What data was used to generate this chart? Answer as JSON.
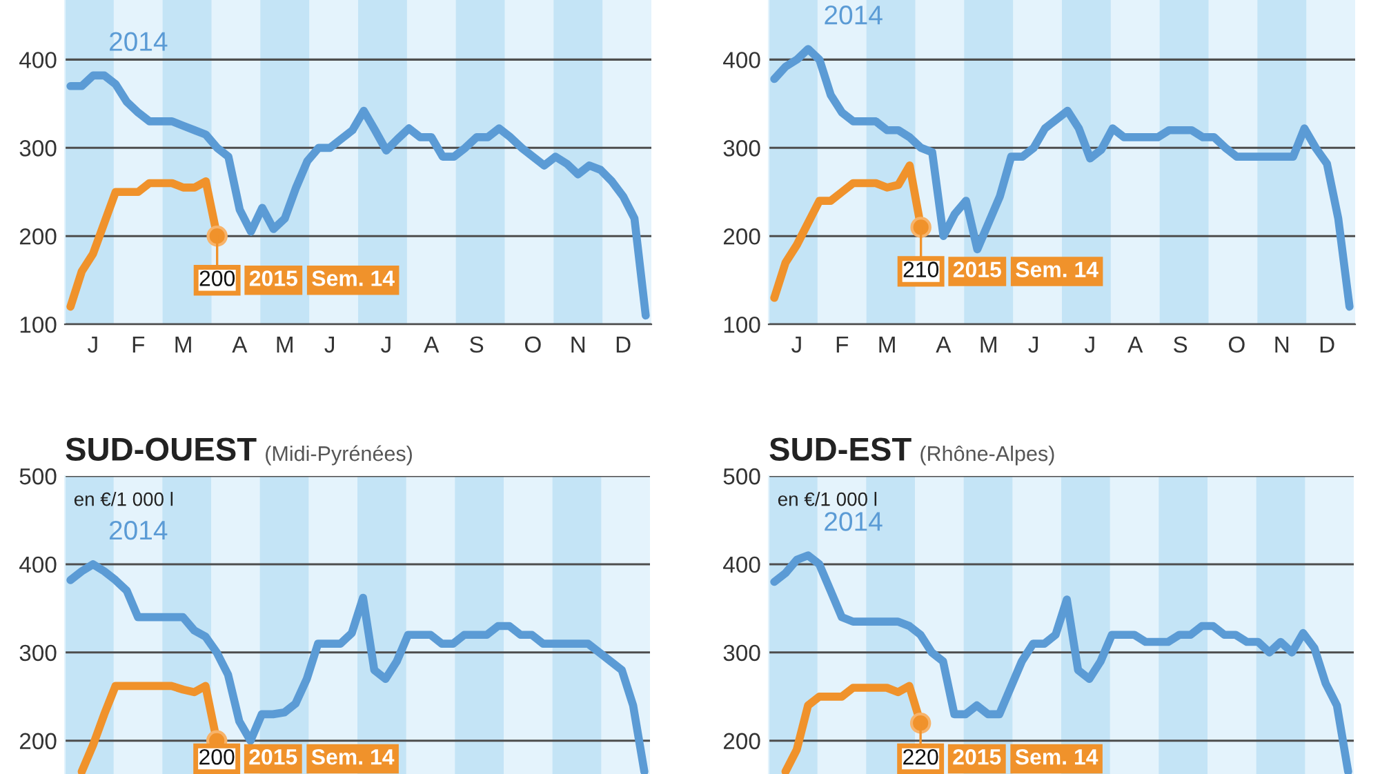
{
  "chart_data": [
    {
      "type": "line",
      "categories": [
        null,
        null,
        "J",
        null,
        null,
        null,
        "F",
        null,
        null,
        null,
        "M",
        null,
        null,
        null,
        null,
        "A",
        null,
        null,
        null,
        "M",
        null,
        null,
        null,
        "J",
        null,
        null,
        null,
        null,
        "J",
        null,
        null,
        null,
        "A",
        null,
        null,
        null,
        "S",
        null,
        null,
        null,
        null,
        "O",
        null,
        null,
        null,
        "N",
        null,
        null,
        null,
        "D",
        null,
        null
      ],
      "ylim": [
        100,
        500
      ],
      "yticks": [
        100,
        200,
        300,
        400
      ],
      "grid": "y",
      "annotations": [
        "Sem. 14"
      ],
      "series": [
        {
          "name": "2014",
          "color": "#5b9bd5",
          "values": [
            370,
            370,
            382,
            382,
            372,
            352,
            340,
            330,
            330,
            330,
            325,
            320,
            315,
            300,
            290,
            230,
            205,
            232,
            208,
            220,
            255,
            285,
            300,
            300,
            310,
            320,
            342,
            320,
            297,
            310,
            322,
            312,
            312,
            290,
            290,
            300,
            312,
            312,
            322,
            312,
            300,
            290,
            280,
            290,
            282,
            270,
            280,
            275,
            262,
            245,
            220,
            110
          ]
        },
        {
          "name": "2015",
          "color": "#f0922b",
          "values": [
            120,
            160,
            180,
            215,
            250,
            250,
            250,
            260,
            260,
            260,
            255,
            255,
            262,
            200,
            null,
            null,
            null,
            null,
            null,
            null,
            null,
            null,
            null,
            null,
            null,
            null,
            null,
            null,
            null,
            null,
            null,
            null,
            null,
            null,
            null,
            null,
            null,
            null,
            null,
            null,
            null,
            null,
            null,
            null,
            null,
            null,
            null,
            null,
            null,
            null,
            null,
            null
          ],
          "value_labels": [
            null,
            null,
            null,
            null,
            null,
            null,
            null,
            null,
            null,
            null,
            null,
            null,
            null,
            "200",
            null,
            null,
            null,
            null,
            null,
            null,
            null,
            null,
            null,
            null,
            null,
            null,
            null,
            null,
            null,
            null,
            null,
            null,
            null,
            null,
            null,
            null,
            null,
            null,
            null,
            null,
            null,
            null,
            null,
            null,
            null,
            null,
            null,
            null,
            null,
            null,
            null,
            null
          ]
        }
      ]
    },
    {
      "type": "line",
      "categories": [
        null,
        null,
        "J",
        null,
        null,
        null,
        "F",
        null,
        null,
        null,
        "M",
        null,
        null,
        null,
        null,
        "A",
        null,
        null,
        null,
        "M",
        null,
        null,
        null,
        "J",
        null,
        null,
        null,
        null,
        "J",
        null,
        null,
        null,
        "A",
        null,
        null,
        null,
        "S",
        null,
        null,
        null,
        null,
        "O",
        null,
        null,
        null,
        "N",
        null,
        null,
        null,
        "D",
        null,
        null
      ],
      "ylim": [
        100,
        500
      ],
      "yticks": [
        100,
        200,
        300,
        400
      ],
      "grid": "y",
      "annotations": [
        "Sem. 14"
      ],
      "series": [
        {
          "name": "2014",
          "color": "#5b9bd5",
          "values": [
            378,
            392,
            400,
            412,
            400,
            360,
            340,
            330,
            330,
            330,
            320,
            320,
            312,
            300,
            295,
            200,
            225,
            240,
            185,
            215,
            245,
            290,
            290,
            300,
            322,
            332,
            342,
            322,
            288,
            298,
            322,
            312,
            312,
            312,
            312,
            320,
            320,
            320,
            312,
            312,
            300,
            290,
            290,
            290,
            290,
            290,
            290,
            322,
            300,
            282,
            220,
            120
          ]
        },
        {
          "name": "2015",
          "color": "#f0922b",
          "values": [
            130,
            170,
            190,
            215,
            240,
            240,
            250,
            260,
            260,
            260,
            255,
            258,
            280,
            210,
            null,
            null,
            null,
            null,
            null,
            null,
            null,
            null,
            null,
            null,
            null,
            null,
            null,
            null,
            null,
            null,
            null,
            null,
            null,
            null,
            null,
            null,
            null,
            null,
            null,
            null,
            null,
            null,
            null,
            null,
            null,
            null,
            null,
            null,
            null,
            null,
            null,
            null
          ],
          "value_labels": [
            null,
            null,
            null,
            null,
            null,
            null,
            null,
            null,
            null,
            null,
            null,
            null,
            null,
            "210",
            null,
            null,
            null,
            null,
            null,
            null,
            null,
            null,
            null,
            null,
            null,
            null,
            null,
            null,
            null,
            null,
            null,
            null,
            null,
            null,
            null,
            null,
            null,
            null,
            null,
            null,
            null,
            null,
            null,
            null,
            null,
            null,
            null,
            null,
            null,
            null,
            null,
            null
          ]
        }
      ]
    },
    {
      "type": "line",
      "title": "SUD-OUEST",
      "subtitle": "(Midi-Pyrénées)",
      "ylabel": "en €/1 000 l",
      "tick_labels": "y",
      "categories": [
        null,
        null,
        null,
        null,
        null,
        null,
        null,
        null,
        null,
        null,
        null,
        null,
        null,
        null,
        null,
        null,
        null,
        null,
        null,
        null,
        null,
        null,
        null,
        null,
        null,
        null,
        null,
        null,
        null,
        null,
        null,
        null,
        null,
        null,
        null,
        null,
        null,
        null,
        null,
        null,
        null,
        null,
        null,
        null,
        null,
        null,
        null,
        null,
        null,
        null,
        null,
        null
      ],
      "ylim": [
        100,
        500
      ],
      "yticks": [
        200,
        300,
        400,
        500
      ],
      "grid": "y",
      "annotations": [
        "Sem. 14"
      ],
      "series": [
        {
          "name": "2014",
          "color": "#5b9bd5",
          "values": [
            382,
            392,
            400,
            392,
            382,
            370,
            340,
            340,
            340,
            340,
            340,
            325,
            318,
            300,
            275,
            222,
            200,
            230,
            230,
            232,
            242,
            270,
            310,
            310,
            310,
            322,
            362,
            280,
            270,
            290,
            320,
            320,
            320,
            310,
            310,
            320,
            320,
            320,
            330,
            330,
            320,
            320,
            310,
            310,
            310,
            310,
            310,
            300,
            290,
            280,
            240,
            165
          ]
        },
        {
          "name": "2015",
          "color": "#f0922b",
          "values": [
            null,
            165,
            195,
            230,
            262,
            262,
            262,
            262,
            262,
            262,
            258,
            255,
            262,
            200,
            null,
            null,
            null,
            null,
            null,
            null,
            null,
            null,
            null,
            null,
            null,
            null,
            null,
            null,
            null,
            null,
            null,
            null,
            null,
            null,
            null,
            null,
            null,
            null,
            null,
            null,
            null,
            null,
            null,
            null,
            null,
            null,
            null,
            null,
            null,
            null,
            null,
            null
          ],
          "value_labels": [
            null,
            null,
            null,
            null,
            null,
            null,
            null,
            null,
            null,
            null,
            null,
            null,
            null,
            "200",
            null,
            null,
            null,
            null,
            null,
            null,
            null,
            null,
            null,
            null,
            null,
            null,
            null,
            null,
            null,
            null,
            null,
            null,
            null,
            null,
            null,
            null,
            null,
            null,
            null,
            null,
            null,
            null,
            null,
            null,
            null,
            null,
            null,
            null,
            null,
            null,
            null,
            null
          ]
        }
      ]
    },
    {
      "type": "line",
      "title": "SUD-EST",
      "subtitle": "(Rhône-Alpes)",
      "ylabel": "en €/1 000 l",
      "tick_labels": "y",
      "categories": [
        null,
        null,
        null,
        null,
        null,
        null,
        null,
        null,
        null,
        null,
        null,
        null,
        null,
        null,
        null,
        null,
        null,
        null,
        null,
        null,
        null,
        null,
        null,
        null,
        null,
        null,
        null,
        null,
        null,
        null,
        null,
        null,
        null,
        null,
        null,
        null,
        null,
        null,
        null,
        null,
        null,
        null,
        null,
        null,
        null,
        null,
        null,
        null,
        null,
        null,
        null,
        null
      ],
      "ylim": [
        100,
        500
      ],
      "yticks": [
        200,
        300,
        400,
        500
      ],
      "grid": "y",
      "annotations": [
        "Sem. 14"
      ],
      "series": [
        {
          "name": "2014",
          "color": "#5b9bd5",
          "values": [
            380,
            390,
            405,
            410,
            400,
            370,
            340,
            335,
            335,
            335,
            335,
            335,
            330,
            320,
            300,
            290,
            230,
            230,
            240,
            230,
            230,
            260,
            290,
            310,
            310,
            320,
            360,
            280,
            270,
            290,
            320,
            320,
            320,
            312,
            312,
            312,
            320,
            320,
            330,
            330,
            320,
            320,
            312,
            312,
            300,
            312,
            300,
            322,
            305,
            265,
            240,
            165
          ]
        },
        {
          "name": "2015",
          "color": "#f0922b",
          "values": [
            null,
            165,
            190,
            240,
            250,
            250,
            250,
            260,
            260,
            260,
            260,
            255,
            262,
            220,
            null,
            null,
            null,
            null,
            null,
            null,
            null,
            null,
            null,
            null,
            null,
            null,
            null,
            null,
            null,
            null,
            null,
            null,
            null,
            null,
            null,
            null,
            null,
            null,
            null,
            null,
            null,
            null,
            null,
            null,
            null,
            null,
            null,
            null,
            null,
            null,
            null,
            null
          ],
          "value_labels": [
            null,
            null,
            null,
            null,
            null,
            null,
            null,
            null,
            null,
            null,
            null,
            null,
            null,
            "220",
            null,
            null,
            null,
            null,
            null,
            null,
            null,
            null,
            null,
            null,
            null,
            null,
            null,
            null,
            null,
            null,
            null,
            null,
            null,
            null,
            null,
            null,
            null,
            null,
            null,
            null,
            null,
            null,
            null,
            null,
            null,
            null,
            null,
            null,
            null,
            null,
            null,
            null
          ]
        }
      ]
    }
  ]
}
